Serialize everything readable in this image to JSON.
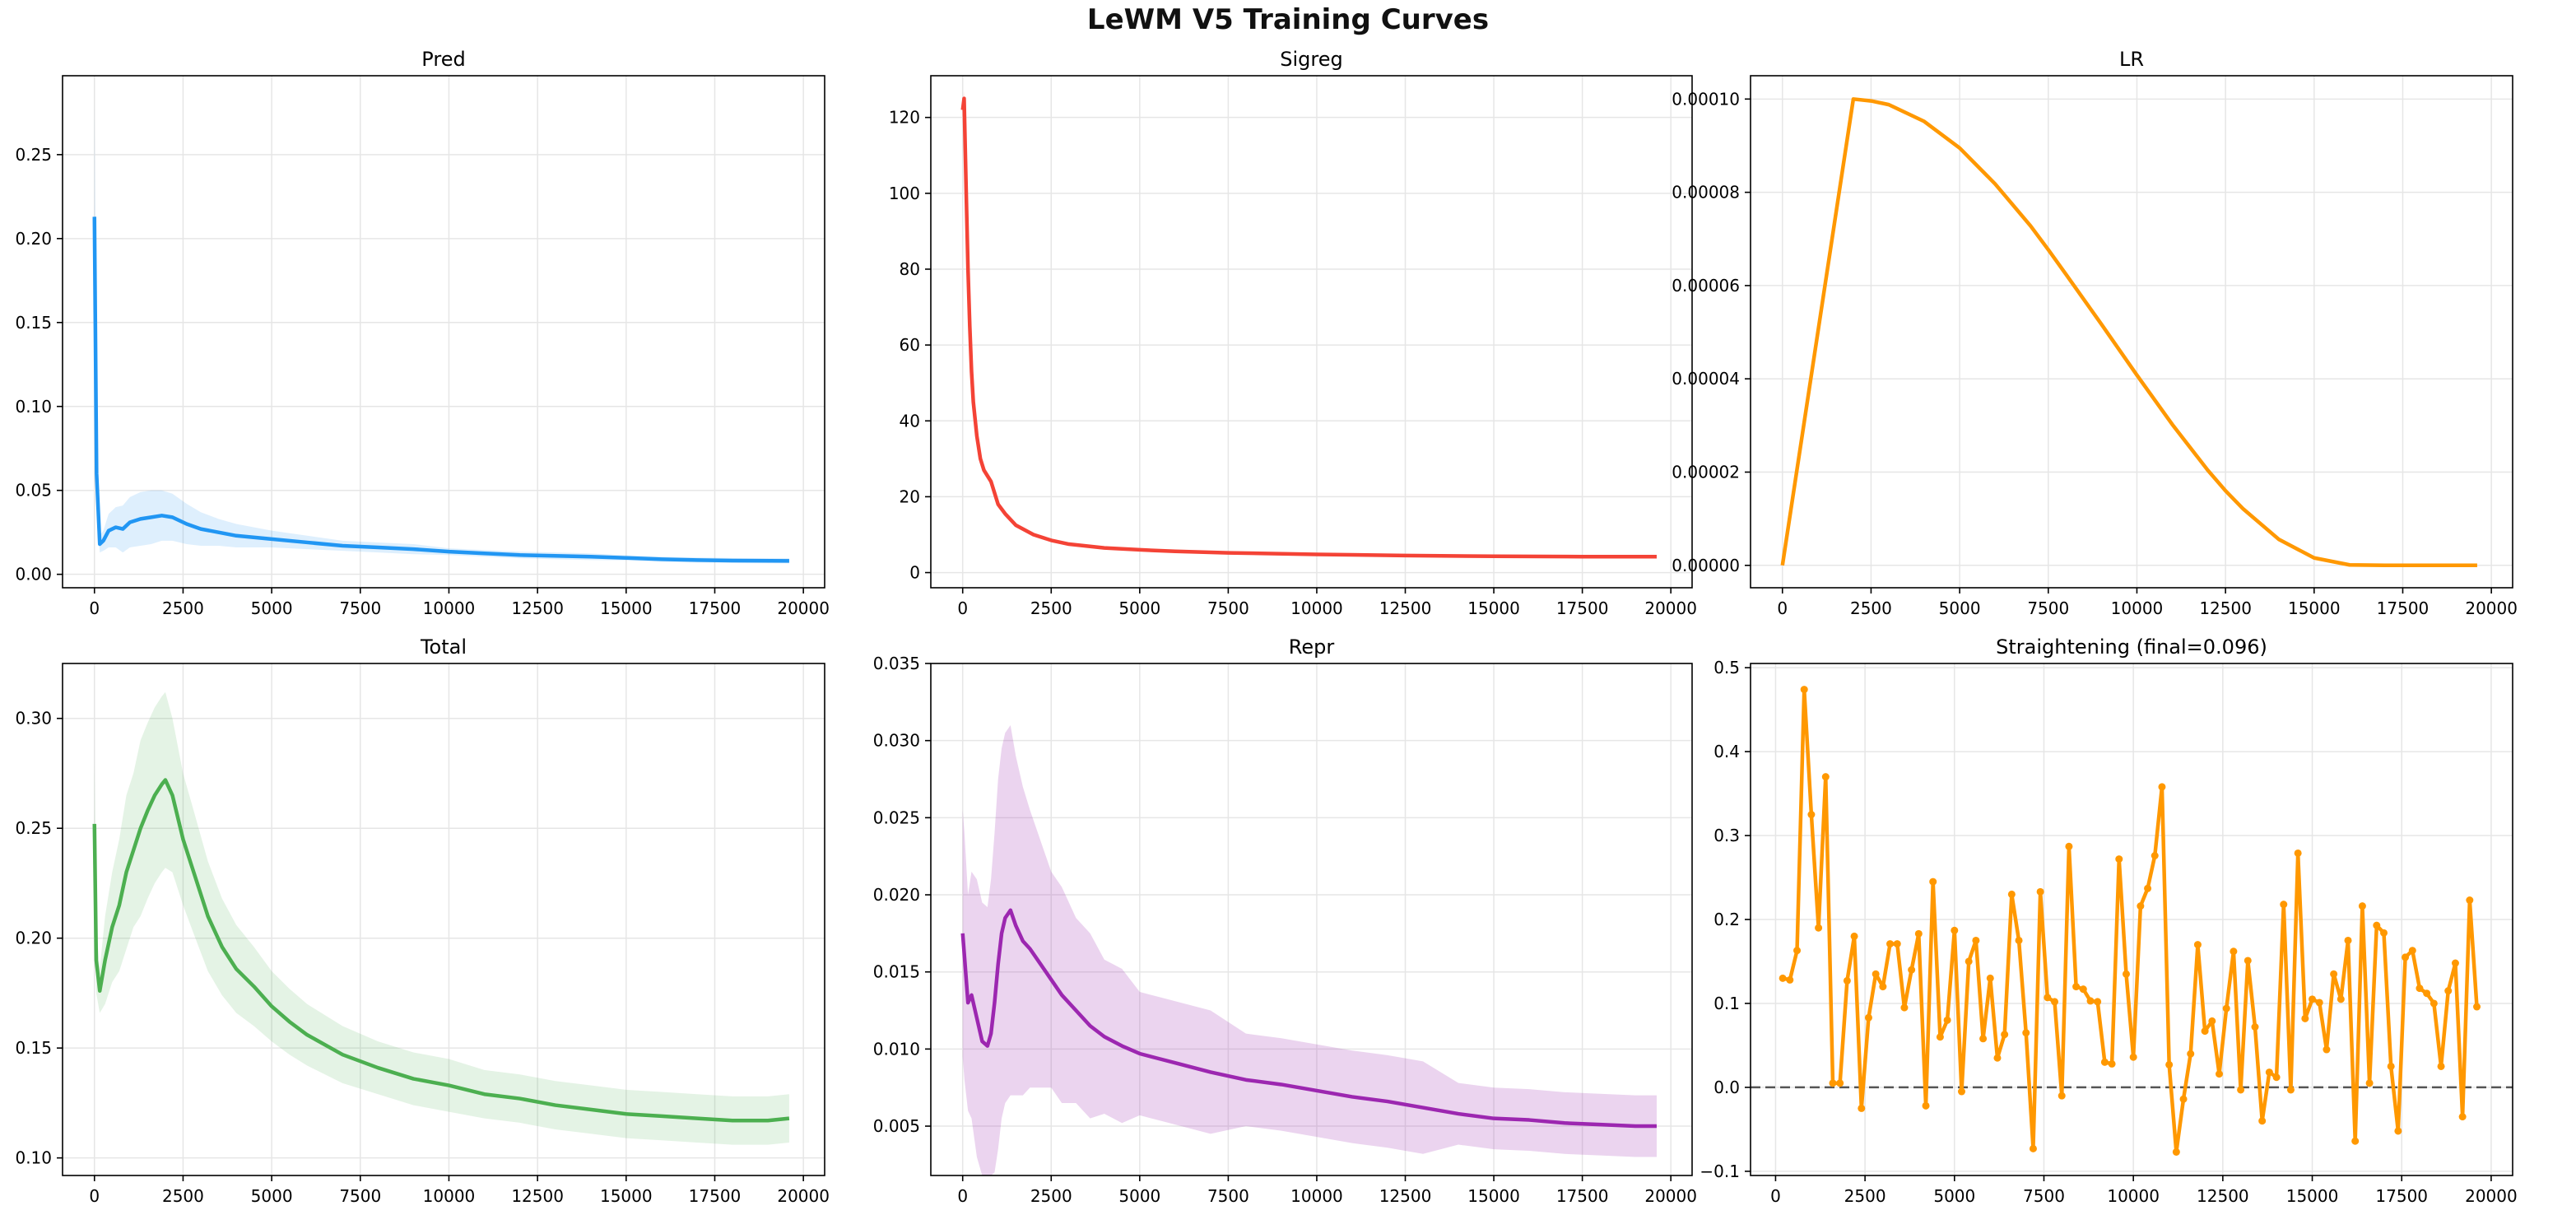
{
  "suptitle": "LeWM V5 Training Curves",
  "chart_data": [
    {
      "id": "pred",
      "type": "line",
      "title": "Pred",
      "xlabel": "",
      "ylabel": "",
      "grid": true,
      "color": "#2196f3",
      "xlim": [
        -900,
        20600
      ],
      "ylim": [
        -0.008,
        0.297
      ],
      "xticks": [
        0,
        2500,
        5000,
        7500,
        10000,
        12500,
        15000,
        17500,
        20000
      ],
      "yticks": [
        0.0,
        0.05,
        0.1,
        0.15,
        0.2,
        0.25
      ],
      "ytick_labels": [
        "0.00",
        "0.05",
        "0.10",
        "0.15",
        "0.20",
        "0.25"
      ],
      "band_opacity": 0.15,
      "series": [
        {
          "x": [
            0,
            60,
            150,
            250,
            400,
            600,
            800,
            1000,
            1300,
            1600,
            1900,
            2200,
            2600,
            3000,
            3500,
            4000,
            5000,
            6000,
            7000,
            8000,
            9000,
            10000,
            11000,
            12000,
            13000,
            14000,
            15000,
            16000,
            17000,
            18000,
            19600
          ],
          "y": [
            0.213,
            0.06,
            0.018,
            0.02,
            0.026,
            0.028,
            0.027,
            0.031,
            0.033,
            0.034,
            0.035,
            0.034,
            0.03,
            0.027,
            0.025,
            0.023,
            0.021,
            0.019,
            0.017,
            0.016,
            0.015,
            0.0135,
            0.0125,
            0.0115,
            0.011,
            0.0105,
            0.0098,
            0.009,
            0.0085,
            0.0082,
            0.008
          ],
          "spread": [
            0.07,
            0.02,
            0.005,
            0.006,
            0.01,
            0.012,
            0.014,
            0.015,
            0.016,
            0.016,
            0.015,
            0.014,
            0.012,
            0.01,
            0.008,
            0.007,
            0.005,
            0.004,
            0.003,
            0.003,
            0.003,
            0.002,
            0.002,
            0.002,
            0.002,
            0.002,
            0.0015,
            0.0015,
            0.0015,
            0.0015,
            0.0015
          ]
        }
      ]
    },
    {
      "id": "sigreg",
      "type": "line",
      "title": "Sigreg",
      "xlabel": "",
      "ylabel": "",
      "grid": true,
      "color": "#f44336",
      "xlim": [
        -900,
        20600
      ],
      "ylim": [
        -4,
        131
      ],
      "xticks": [
        0,
        2500,
        5000,
        7500,
        10000,
        12500,
        15000,
        17500,
        20000
      ],
      "yticks": [
        0,
        20,
        40,
        60,
        80,
        100,
        120
      ],
      "ytick_labels": [
        "0",
        "20",
        "40",
        "60",
        "80",
        "100",
        "120"
      ],
      "band_opacity": 0.15,
      "series": [
        {
          "x": [
            0,
            40,
            100,
            150,
            200,
            250,
            300,
            400,
            500,
            600,
            700,
            800,
            900,
            1000,
            1200,
            1500,
            2000,
            2500,
            3000,
            4000,
            5000,
            6000,
            7500,
            10000,
            12500,
            15000,
            17500,
            19600
          ],
          "y": [
            122,
            125,
            100,
            80,
            65,
            53,
            45,
            36,
            30,
            27,
            25.5,
            24,
            21,
            18,
            15.5,
            12.5,
            10,
            8.5,
            7.5,
            6.5,
            6,
            5.6,
            5.2,
            4.8,
            4.5,
            4.3,
            4.2,
            4.2
          ],
          "spread": [
            2,
            2,
            2,
            2,
            2,
            2,
            1.5,
            1.5,
            1.2,
            1,
            1,
            1,
            0.8,
            0.8,
            0.6,
            0.5,
            0.4,
            0.3,
            0.3,
            0.2,
            0.2,
            0.2,
            0.2,
            0.2,
            0.2,
            0.2,
            0.2,
            0.2
          ]
        }
      ]
    },
    {
      "id": "lr",
      "type": "line",
      "title": "LR",
      "xlabel": "",
      "ylabel": "",
      "grid": true,
      "color": "#ff9800",
      "xlim": [
        -900,
        20600
      ],
      "ylim": [
        -4.8e-06,
        0.000105
      ],
      "xticks": [
        0,
        2500,
        5000,
        7500,
        10000,
        12500,
        15000,
        17500,
        20000
      ],
      "yticks": [
        0.0,
        2e-05,
        4e-05,
        6e-05,
        8e-05,
        0.0001
      ],
      "ytick_labels": [
        "0.00000",
        "0.00002",
        "0.00004",
        "0.00006",
        "0.00008",
        "0.00010"
      ],
      "band_opacity": 0,
      "series": [
        {
          "x": [
            0,
            2000,
            2500,
            3000,
            4000,
            5000,
            6000,
            7000,
            7500,
            8000,
            9000,
            10000,
            11000,
            12000,
            12500,
            13000,
            14000,
            15000,
            16000,
            17000,
            17500,
            18000,
            19000,
            19600
          ],
          "y": [
            0.0,
            0.0001,
            9.96e-05,
            9.88e-05,
            9.52e-05,
            8.95e-05,
            8.18e-05,
            7.28e-05,
            6.77e-05,
            6.24e-05,
            5.17e-05,
            4.08e-05,
            3.02e-05,
            2.04e-05,
            1.6e-05,
            1.21e-05,
            5.6e-06,
            1.6e-06,
            1e-07,
            0.0,
            0.0,
            0.0,
            0.0,
            0.0
          ]
        }
      ]
    },
    {
      "id": "total",
      "type": "line",
      "title": "Total",
      "xlabel": "",
      "ylabel": "",
      "grid": true,
      "color": "#4caf50",
      "xlim": [
        -900,
        20600
      ],
      "ylim": [
        0.092,
        0.325
      ],
      "xticks": [
        0,
        2500,
        5000,
        7500,
        10000,
        12500,
        15000,
        17500,
        20000
      ],
      "yticks": [
        0.1,
        0.15,
        0.2,
        0.25,
        0.3
      ],
      "ytick_labels": [
        "0.10",
        "0.15",
        "0.20",
        "0.25",
        "0.30"
      ],
      "band_opacity": 0.15,
      "series": [
        {
          "x": [
            0,
            50,
            150,
            300,
            500,
            700,
            900,
            1100,
            1300,
            1500,
            1700,
            1900,
            2000,
            2200,
            2500,
            2800,
            3200,
            3600,
            4000,
            4500,
            5000,
            5500,
            6000,
            7000,
            8000,
            9000,
            10000,
            11000,
            12000,
            13000,
            14000,
            15000,
            16000,
            17000,
            18000,
            19000,
            19600
          ],
          "y": [
            0.252,
            0.19,
            0.176,
            0.19,
            0.205,
            0.215,
            0.23,
            0.24,
            0.25,
            0.258,
            0.265,
            0.27,
            0.272,
            0.265,
            0.245,
            0.23,
            0.21,
            0.196,
            0.186,
            0.178,
            0.169,
            0.162,
            0.156,
            0.147,
            0.141,
            0.136,
            0.133,
            0.129,
            0.127,
            0.124,
            0.122,
            0.12,
            0.119,
            0.118,
            0.117,
            0.117,
            0.118
          ],
          "spread": [
            0.03,
            0.015,
            0.01,
            0.02,
            0.025,
            0.03,
            0.035,
            0.035,
            0.04,
            0.04,
            0.04,
            0.04,
            0.04,
            0.035,
            0.03,
            0.028,
            0.025,
            0.022,
            0.02,
            0.018,
            0.016,
            0.015,
            0.014,
            0.013,
            0.012,
            0.012,
            0.012,
            0.011,
            0.011,
            0.011,
            0.011,
            0.011,
            0.011,
            0.011,
            0.011,
            0.011,
            0.011
          ]
        }
      ]
    },
    {
      "id": "repr",
      "type": "line",
      "title": "Repr",
      "xlabel": "",
      "ylabel": "",
      "grid": true,
      "color": "#9c27b0",
      "xlim": [
        -900,
        20600
      ],
      "ylim": [
        0.0018,
        0.035
      ],
      "xticks": [
        0,
        2500,
        5000,
        7500,
        10000,
        12500,
        15000,
        17500,
        20000
      ],
      "yticks": [
        0.005,
        0.01,
        0.015,
        0.02,
        0.025,
        0.03,
        0.035
      ],
      "ytick_labels": [
        "0.005",
        "0.010",
        "0.015",
        "0.020",
        "0.025",
        "0.030",
        "0.035"
      ],
      "band_opacity": 0.2,
      "series": [
        {
          "x": [
            0,
            50,
            150,
            250,
            400,
            550,
            700,
            800,
            900,
            1000,
            1100,
            1200,
            1350,
            1500,
            1700,
            1900,
            2200,
            2500,
            2800,
            3200,
            3600,
            4000,
            4500,
            5000,
            5500,
            6000,
            7000,
            8000,
            9000,
            10000,
            11000,
            12000,
            13000,
            14000,
            15000,
            16000,
            17000,
            18000,
            19000,
            19600
          ],
          "y": [
            0.0175,
            0.016,
            0.013,
            0.0135,
            0.012,
            0.0105,
            0.0102,
            0.011,
            0.013,
            0.0155,
            0.0175,
            0.0185,
            0.019,
            0.018,
            0.017,
            0.0165,
            0.0155,
            0.0145,
            0.0135,
            0.0125,
            0.0115,
            0.0108,
            0.0102,
            0.0097,
            0.0094,
            0.0091,
            0.0085,
            0.008,
            0.0077,
            0.0073,
            0.0069,
            0.0066,
            0.0062,
            0.0058,
            0.0055,
            0.0054,
            0.0052,
            0.0051,
            0.005,
            0.005
          ],
          "spread": [
            0.008,
            0.008,
            0.007,
            0.008,
            0.009,
            0.009,
            0.009,
            0.01,
            0.011,
            0.012,
            0.012,
            0.012,
            0.012,
            0.011,
            0.01,
            0.009,
            0.008,
            0.007,
            0.007,
            0.006,
            0.006,
            0.005,
            0.005,
            0.004,
            0.004,
            0.004,
            0.004,
            0.003,
            0.003,
            0.003,
            0.003,
            0.003,
            0.003,
            0.002,
            0.002,
            0.002,
            0.002,
            0.002,
            0.002,
            0.002
          ]
        }
      ]
    },
    {
      "id": "straightening",
      "type": "line",
      "title": "Straightening (final=0.096)",
      "xlabel": "",
      "ylabel": "",
      "grid": true,
      "color": "#ff9800",
      "markers": true,
      "xlim": [
        -700,
        20600
      ],
      "ylim": [
        -0.105,
        0.505
      ],
      "xticks": [
        0,
        2500,
        5000,
        7500,
        10000,
        12500,
        15000,
        17500,
        20000
      ],
      "yticks": [
        -0.1,
        0.0,
        0.1,
        0.2,
        0.3,
        0.4,
        0.5
      ],
      "ytick_labels": [
        "−0.1",
        "0.0",
        "0.1",
        "0.2",
        "0.3",
        "0.4",
        "0.5"
      ],
      "reference_line": 0.0,
      "series": [
        {
          "x": [
            200,
            400,
            600,
            800,
            1000,
            1200,
            1400,
            1600,
            1800,
            2000,
            2200,
            2400,
            2600,
            2800,
            3000,
            3200,
            3400,
            3600,
            3800,
            4000,
            4200,
            4400,
            4600,
            4800,
            5000,
            5200,
            5400,
            5600,
            5800,
            6000,
            6200,
            6400,
            6600,
            6800,
            7000,
            7200,
            7400,
            7600,
            7800,
            8000,
            8200,
            8400,
            8600,
            8800,
            9000,
            9200,
            9400,
            9600,
            9800,
            10000,
            10200,
            10400,
            10600,
            10800,
            11000,
            11200,
            11400,
            11600,
            11800,
            12000,
            12200,
            12400,
            12600,
            12800,
            13000,
            13200,
            13400,
            13600,
            13800,
            14000,
            14200,
            14400,
            14600,
            14800,
            15000,
            15200,
            15400,
            15600,
            15800,
            16000,
            16200,
            16400,
            16600,
            16800,
            17000,
            17200,
            17400,
            17600,
            17800,
            18000,
            18200,
            18400,
            18600,
            18800,
            19000,
            19200,
            19400,
            19600
          ],
          "y": [
            0.13,
            0.128,
            0.163,
            0.474,
            0.325,
            0.19,
            0.37,
            0.005,
            0.005,
            0.127,
            0.18,
            -0.025,
            0.083,
            0.135,
            0.12,
            0.171,
            0.171,
            0.095,
            0.14,
            0.183,
            -0.022,
            0.245,
            0.06,
            0.08,
            0.187,
            -0.005,
            0.15,
            0.175,
            0.058,
            0.13,
            0.035,
            0.063,
            0.23,
            0.175,
            0.065,
            -0.073,
            0.233,
            0.107,
            0.102,
            -0.01,
            0.287,
            0.12,
            0.117,
            0.103,
            0.102,
            0.03,
            0.028,
            0.272,
            0.135,
            0.036,
            0.216,
            0.237,
            0.276,
            0.358,
            0.027,
            -0.077,
            -0.014,
            0.04,
            0.17,
            0.067,
            0.079,
            0.016,
            0.094,
            0.162,
            -0.003,
            0.151,
            0.072,
            -0.04,
            0.018,
            0.012,
            0.218,
            -0.003,
            0.279,
            0.082,
            0.105,
            0.101,
            0.045,
            0.135,
            0.105,
            0.175,
            -0.064,
            0.216,
            0.005,
            0.193,
            0.184,
            0.025,
            -0.052,
            0.155,
            0.163,
            0.118,
            0.112,
            0.1,
            0.025,
            0.115,
            0.148,
            -0.035,
            0.223,
            0.096
          ]
        }
      ]
    }
  ]
}
